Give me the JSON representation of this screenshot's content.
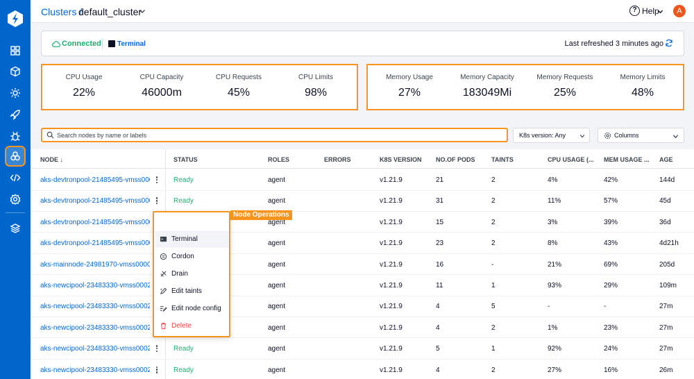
{
  "header": {
    "breadcrumb_root": "Clusters /",
    "cluster_name": "default_cluster",
    "help_label": "Help",
    "avatar_initial": "A"
  },
  "status_bar": {
    "connection": "Connected",
    "terminal": "Terminal",
    "last_refreshed": "Last refreshed 3 minutes ago"
  },
  "metrics": {
    "cpu": [
      {
        "label": "CPU Usage",
        "value": "22%"
      },
      {
        "label": "CPU Capacity",
        "value": "46000m"
      },
      {
        "label": "CPU Requests",
        "value": "45%"
      },
      {
        "label": "CPU Limits",
        "value": "98%"
      }
    ],
    "memory": [
      {
        "label": "Memory Usage",
        "value": "27%"
      },
      {
        "label": "Memory Capacity",
        "value": "183049Mi"
      },
      {
        "label": "Memory Requests",
        "value": "25%"
      },
      {
        "label": "Memory Limits",
        "value": "48%"
      }
    ]
  },
  "search": {
    "placeholder": "Search nodes by name or labels"
  },
  "filters": {
    "k8s_version": "K8s version: Any",
    "columns": "Columns"
  },
  "table": {
    "columns": [
      "NODE",
      "STATUS",
      "ROLES",
      "ERRORS",
      "K8S VERSION",
      "NO.OF PODS",
      "TAINTS",
      "CPU USAGE (...",
      "MEM USAGE ...",
      "AGE"
    ],
    "sort_indicator": "↓",
    "rows": [
      {
        "name": "aks-devtronpool-21485495-vmss000000",
        "status": "Ready",
        "role": "agent",
        "errors": "",
        "version": "v1.21.9",
        "pods": "21",
        "taints": "2",
        "cpu": "4%",
        "mem": "42%",
        "age": "144d"
      },
      {
        "name": "aks-devtronpool-21485495-vmss000001",
        "status": "Ready",
        "role": "agent",
        "errors": "",
        "version": "v1.21.9",
        "pods": "31",
        "taints": "2",
        "cpu": "11%",
        "mem": "57%",
        "age": "45d"
      },
      {
        "name": "aks-devtronpool-21485495-vmss000002",
        "status": "Ready",
        "role": "agent",
        "errors": "",
        "version": "v1.21.9",
        "pods": "15",
        "taints": "2",
        "cpu": "3%",
        "mem": "39%",
        "age": "36d"
      },
      {
        "name": "aks-devtronpool-21485495-vmss000003",
        "status": "",
        "role": "agent",
        "errors": "",
        "version": "v1.21.9",
        "pods": "23",
        "taints": "2",
        "cpu": "8%",
        "mem": "43%",
        "age": "4d21h"
      },
      {
        "name": "aks-mainnode-24981970-vmss000000",
        "status": "",
        "role": "agent",
        "errors": "",
        "version": "v1.21.9",
        "pods": "16",
        "taints": "-",
        "cpu": "21%",
        "mem": "69%",
        "age": "205d"
      },
      {
        "name": "aks-newcipool-23483330-vmss00021l",
        "status": "",
        "role": "agent",
        "errors": "",
        "version": "v1.21.9",
        "pods": "11",
        "taints": "1",
        "cpu": "93%",
        "mem": "29%",
        "age": "109m"
      },
      {
        "name": "aks-newcipool-23483330-vmss00022",
        "status": "",
        "role": "agent",
        "errors": "",
        "version": "v1.21.9",
        "pods": "4",
        "taints": "5",
        "cpu": "-",
        "mem": "-",
        "age": "27m"
      },
      {
        "name": "aks-newcipool-23483330-vmss00023",
        "status": "",
        "role": "agent",
        "errors": "",
        "version": "v1.21.9",
        "pods": "4",
        "taints": "2",
        "cpu": "1%",
        "mem": "23%",
        "age": "27m"
      },
      {
        "name": "aks-newcipool-23483330-vmss00024",
        "status": "Ready",
        "role": "agent",
        "errors": "",
        "version": "v1.21.9",
        "pods": "5",
        "taints": "1",
        "cpu": "92%",
        "mem": "24%",
        "age": "27m"
      },
      {
        "name": "aks-newcipool-23483330-vmss00025",
        "status": "Ready",
        "role": "agent",
        "errors": "",
        "version": "v1.21.9",
        "pods": "4",
        "taints": "2",
        "cpu": "27%",
        "mem": "16%",
        "age": "26m"
      }
    ]
  },
  "node_menu": {
    "callout": "Node Operations",
    "items": [
      {
        "label": "Terminal",
        "icon": "terminal-icon"
      },
      {
        "label": "Cordon",
        "icon": "cordon-icon"
      },
      {
        "label": "Drain",
        "icon": "drain-icon"
      },
      {
        "label": "Edit taints",
        "icon": "taints-icon"
      },
      {
        "label": "Edit node config",
        "icon": "edit-config-icon"
      },
      {
        "label": "Delete",
        "icon": "trash-icon"
      }
    ]
  },
  "sidebar": {
    "items": [
      "grid-icon",
      "cube-icon",
      "bug-gear-icon",
      "rocket-icon",
      "bug-icon",
      "clusters-icon",
      "code-icon",
      "settings-icon",
      "stack-icon"
    ]
  },
  "colors": {
    "accent": "#0066cc",
    "highlight": "#f7941d",
    "ready": "#1dad70",
    "danger": "#f33e3e"
  }
}
